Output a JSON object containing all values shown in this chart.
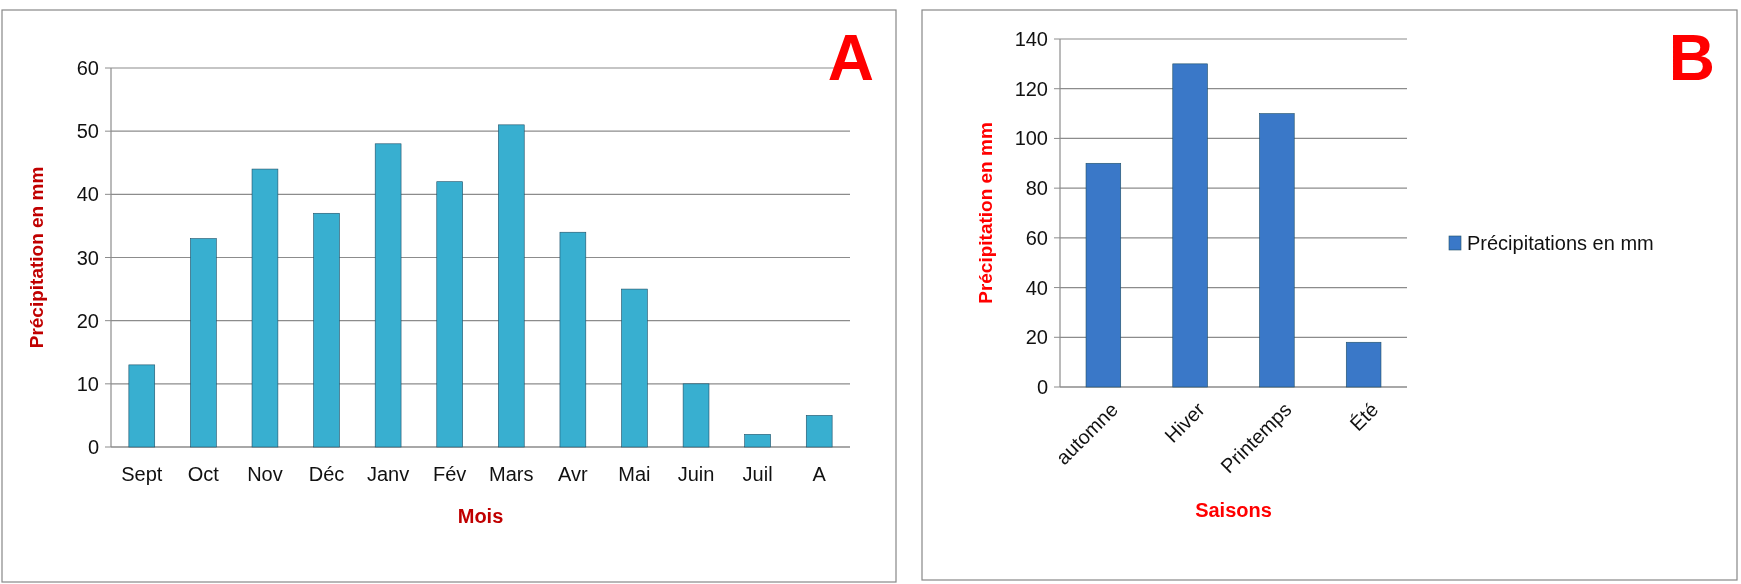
{
  "chart_data": [
    {
      "type": "bar",
      "xlabel": "Mois",
      "ylabel": "Précipitation en mm",
      "annotations": [
        "A"
      ],
      "categories": [
        "Sept",
        "Oct",
        "Nov",
        "Déc",
        "Janv",
        "Fév",
        "Mars",
        "Avr",
        "Mai",
        "Juin",
        "Juil",
        "A"
      ],
      "series": [
        {
          "color": "#38afd0",
          "values": [
            13,
            33,
            44,
            37,
            48,
            42,
            51,
            34,
            25,
            10,
            2,
            5
          ]
        }
      ],
      "ylim": [
        0,
        60
      ],
      "yticks": [
        0,
        10,
        20,
        30,
        40,
        50,
        60
      ],
      "grid": "y"
    },
    {
      "type": "bar",
      "xlabel": "Saisons",
      "ylabel": "Précipitation en mm",
      "annotations": [
        "B"
      ],
      "categories": [
        "automne",
        "Hiver",
        "Printemps",
        "Été"
      ],
      "series": [
        {
          "name": "Précipitations en mm",
          "color": "#3a78c8",
          "values": [
            90,
            130,
            110,
            18
          ]
        }
      ],
      "ylim": [
        0,
        140
      ],
      "yticks": [
        0,
        20,
        40,
        60,
        80,
        100,
        120,
        140
      ],
      "grid": "y",
      "legend": "right"
    }
  ]
}
